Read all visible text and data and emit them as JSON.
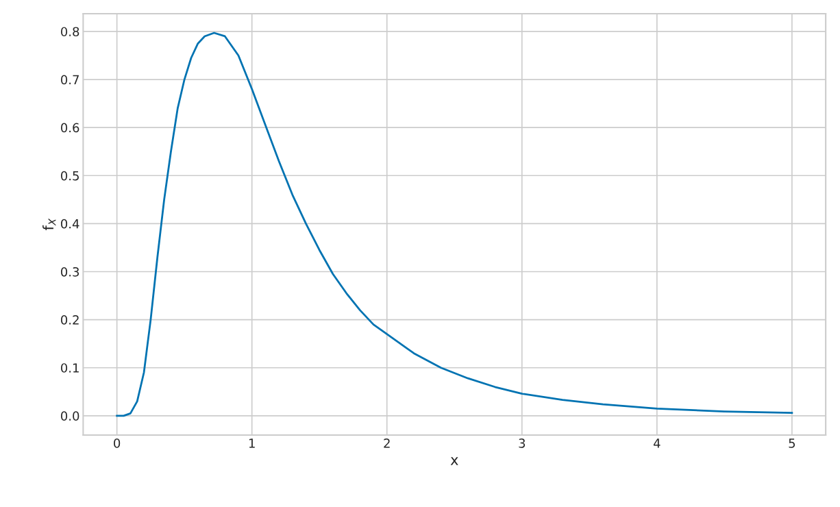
{
  "chart_data": {
    "type": "line",
    "xlabel": "x",
    "ylabel": "f$_{X}$",
    "series": [
      {
        "color": "#0173b2",
        "x": [
          0,
          0.05,
          0.1,
          0.15,
          0.2,
          0.25,
          0.3,
          0.35,
          0.4,
          0.45,
          0.5,
          0.55,
          0.6,
          0.65,
          0.72,
          0.8,
          0.9,
          1.0,
          1.1,
          1.2,
          1.3,
          1.4,
          1.5,
          1.6,
          1.7,
          1.8,
          1.9,
          2.0,
          2.2,
          2.4,
          2.6,
          2.8,
          3.0,
          3.3,
          3.6,
          4.0,
          4.5,
          5.0
        ],
        "values": [
          0,
          0,
          0.005,
          0.03,
          0.09,
          0.2,
          0.33,
          0.45,
          0.55,
          0.64,
          0.7,
          0.745,
          0.775,
          0.79,
          0.797,
          0.79,
          0.75,
          0.68,
          0.605,
          0.53,
          0.46,
          0.4,
          0.345,
          0.295,
          0.255,
          0.22,
          0.19,
          0.17,
          0.13,
          0.1,
          0.078,
          0.06,
          0.046,
          0.033,
          0.024,
          0.015,
          0.009,
          0.006
        ]
      }
    ],
    "xlim": [
      -0.25,
      5.25
    ],
    "xticks": [
      0,
      1,
      2,
      3,
      4,
      5
    ],
    "ylim": [
      -0.04,
      0.837
    ],
    "yticks": [
      {
        "value": 0,
        "label": "0.0"
      },
      0.1,
      0.2,
      0.3,
      0.4,
      0.5,
      0.6,
      0.7,
      0.8
    ],
    "grid": true,
    "marker": "none",
    "line_style": "solid"
  }
}
